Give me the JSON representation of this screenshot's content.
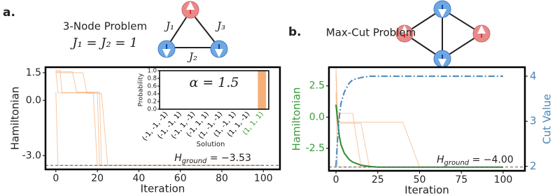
{
  "chart_data": [
    {
      "type": "line",
      "panel_label": "a.",
      "title": "3-Node Problem",
      "subtitle": "J₁ = J₂ = 1",
      "diagram_labels": [
        "J₁",
        "J₃",
        "J₂"
      ],
      "xlabel": "Iteration",
      "ylabel": "Hamiltonian",
      "xlim": [
        -5,
        108
      ],
      "ylim": [
        -3.75,
        1.8
      ],
      "xticks": [
        0,
        20,
        40,
        60,
        80,
        100
      ],
      "yticks": [
        1.5,
        {
          "value": 0,
          "label": "0.0"
        },
        {
          "value": -3,
          "label": "-3.0"
        }
      ],
      "x": [
        0,
        1,
        2,
        3,
        5,
        8,
        10,
        13,
        15,
        18,
        20,
        21,
        22,
        25,
        30,
        40,
        60,
        80,
        100
      ],
      "opacity": 0.7,
      "series": [
        {
          "color": "#f5b07a",
          "values": [
            1.62,
            1.62,
            1.62,
            0.42,
            0.42,
            0.42,
            0.42,
            0.42,
            0.42,
            0.42,
            0.42,
            -3.53,
            -3.53,
            -3.53,
            -3.53,
            -3.53,
            -3.53,
            -3.53,
            -3.53
          ]
        },
        {
          "color": "#f5b07a",
          "values": [
            1.55,
            1.55,
            1.55,
            1.55,
            1.55,
            1.55,
            0.45,
            0.45,
            0.45,
            0.45,
            0.45,
            0.45,
            -3.53,
            -3.53,
            -3.53,
            -3.53,
            -3.53,
            -3.53,
            -3.53
          ]
        },
        {
          "color": "#f5b07a",
          "values": [
            1.6,
            0.4,
            0.4,
            0.4,
            0.4,
            0.4,
            0.4,
            0.4,
            0.4,
            0.4,
            -3.53,
            -3.53,
            -3.53,
            -3.53,
            -3.53,
            -3.53,
            -3.53,
            -3.53,
            -3.53
          ]
        },
        {
          "color": "#f5b07a",
          "values": [
            1.5,
            1.5,
            1.5,
            1.5,
            1.5,
            1.5,
            1.5,
            1.5,
            0.38,
            0.38,
            0.38,
            0.38,
            0.38,
            -3.53,
            -3.53,
            -3.53,
            -3.53,
            -3.53,
            -3.53
          ]
        },
        {
          "color": "#f5b07a",
          "values": [
            0.45,
            -3.53,
            -3.53,
            -3.53,
            -3.53,
            -3.53,
            -3.53,
            -3.53,
            -3.53,
            -3.53,
            -3.53,
            -3.53,
            -3.53,
            -3.53,
            -3.53,
            -3.53,
            -3.53,
            -3.53,
            -3.53
          ]
        }
      ],
      "annotation": {
        "symbol": "H",
        "subscript": "ground",
        "text": " = −3.53",
        "value": -3.53
      }
    },
    {
      "type": "bar",
      "annotation": "α = 1.5",
      "xlabel": "Solution",
      "ylabel": "Probability",
      "categories": [
        "(-1, -1, -1)",
        "(-1, -1, 1)",
        "(-1, 1, -1)",
        "(-1, 1, 1)",
        "(1, -1, -1)",
        "(1, -1, 1)",
        "(1, 1, -1)",
        "(1, 1, 1)"
      ],
      "category_colors": [
        "#000000",
        "#000000",
        "#000000",
        "#000000",
        "#000000",
        "#000000",
        "#000000",
        "#2ca02c"
      ],
      "values": [
        0,
        0,
        0,
        0,
        0,
        0,
        0,
        1.0
      ],
      "color": "#f5b07a",
      "ylim": [
        0,
        1.0
      ],
      "yticks": [
        {
          "value": 0,
          "label": "0.0"
        },
        0.2,
        0.4,
        0.6,
        0.8,
        {
          "value": 1,
          "label": "1.0"
        }
      ]
    },
    {
      "type": "line",
      "panel_label": "b.",
      "title": "Max-Cut Problem",
      "xlabel": "Iteration",
      "ylabel": "Hamiltonian",
      "y2label": "Cut Value",
      "ylabel_color": "#3a9a3a",
      "y2label_color": "#4a86b8",
      "xlim": [
        -4.2,
        113
      ],
      "ylim": [
        -4.3,
        4.0
      ],
      "y2lim": [
        1.9,
        4.2
      ],
      "xticks": [
        0,
        25,
        50,
        75,
        100
      ],
      "yticks": [
        -2.5,
        {
          "value": 0,
          "label": "0.0"
        },
        2.5
      ],
      "y2ticks": [
        2,
        3,
        4
      ],
      "x": [
        0,
        1,
        2,
        3,
        5,
        8,
        10,
        15,
        20,
        25,
        30,
        40,
        50,
        60,
        80,
        100
      ],
      "opacity": 0.7,
      "series": [
        {
          "color": "#f5b07a",
          "values": [
            4.0,
            0.0,
            -0.3,
            -0.4,
            -0.4,
            -0.4,
            -0.4,
            -0.4,
            -0.4,
            -0.4,
            -0.4,
            -0.4,
            -4.0,
            -4.0,
            -4.0,
            -4.0
          ]
        },
        {
          "color": "#f5b07a",
          "values": [
            3.5,
            -0.5,
            -0.5,
            -0.5,
            -0.5,
            -0.5,
            -0.5,
            -0.5,
            -4.0,
            -4.0,
            -4.0,
            -4.0,
            -4.0,
            -4.0,
            -4.0,
            -4.0
          ]
        },
        {
          "color": "#f5b07a",
          "values": [
            2.0,
            -4.0,
            -4.0,
            -4.0,
            -4.0,
            -4.0,
            -4.0,
            -4.0,
            -4.0,
            -4.0,
            -4.0,
            -4.0,
            -4.0,
            -4.0,
            -4.0,
            -4.0
          ]
        },
        {
          "color": "#f5b07a",
          "values": [
            0.5,
            0.5,
            0.3,
            0.3,
            0.3,
            0.3,
            0.3,
            -4.0,
            -4.0,
            -4.0,
            -4.0,
            -4.0,
            -4.0,
            -4.0,
            -4.0,
            -4.0
          ]
        },
        {
          "color": "#2e8b2e",
          "width": 2,
          "values": [
            1.0,
            -0.2,
            -1.5,
            -2.2,
            -2.9,
            -3.4,
            -3.6,
            -3.85,
            -3.95,
            -4.0,
            -4.0,
            -4.0,
            -4.0,
            -4.0,
            -4.0,
            -4.0
          ]
        },
        {
          "color": "#4a86b8",
          "width": 2,
          "style": "dashdot",
          "axis": "y2",
          "values": [
            2.0,
            2.6,
            3.1,
            3.4,
            3.65,
            3.85,
            3.92,
            3.97,
            4.0,
            4.0,
            4.0,
            4.0,
            4.0,
            4.0,
            4.0,
            4.0
          ]
        }
      ],
      "annotation": {
        "symbol": "H",
        "subscript": "ground",
        "text": " = −4.00",
        "value": -4.0
      }
    }
  ]
}
